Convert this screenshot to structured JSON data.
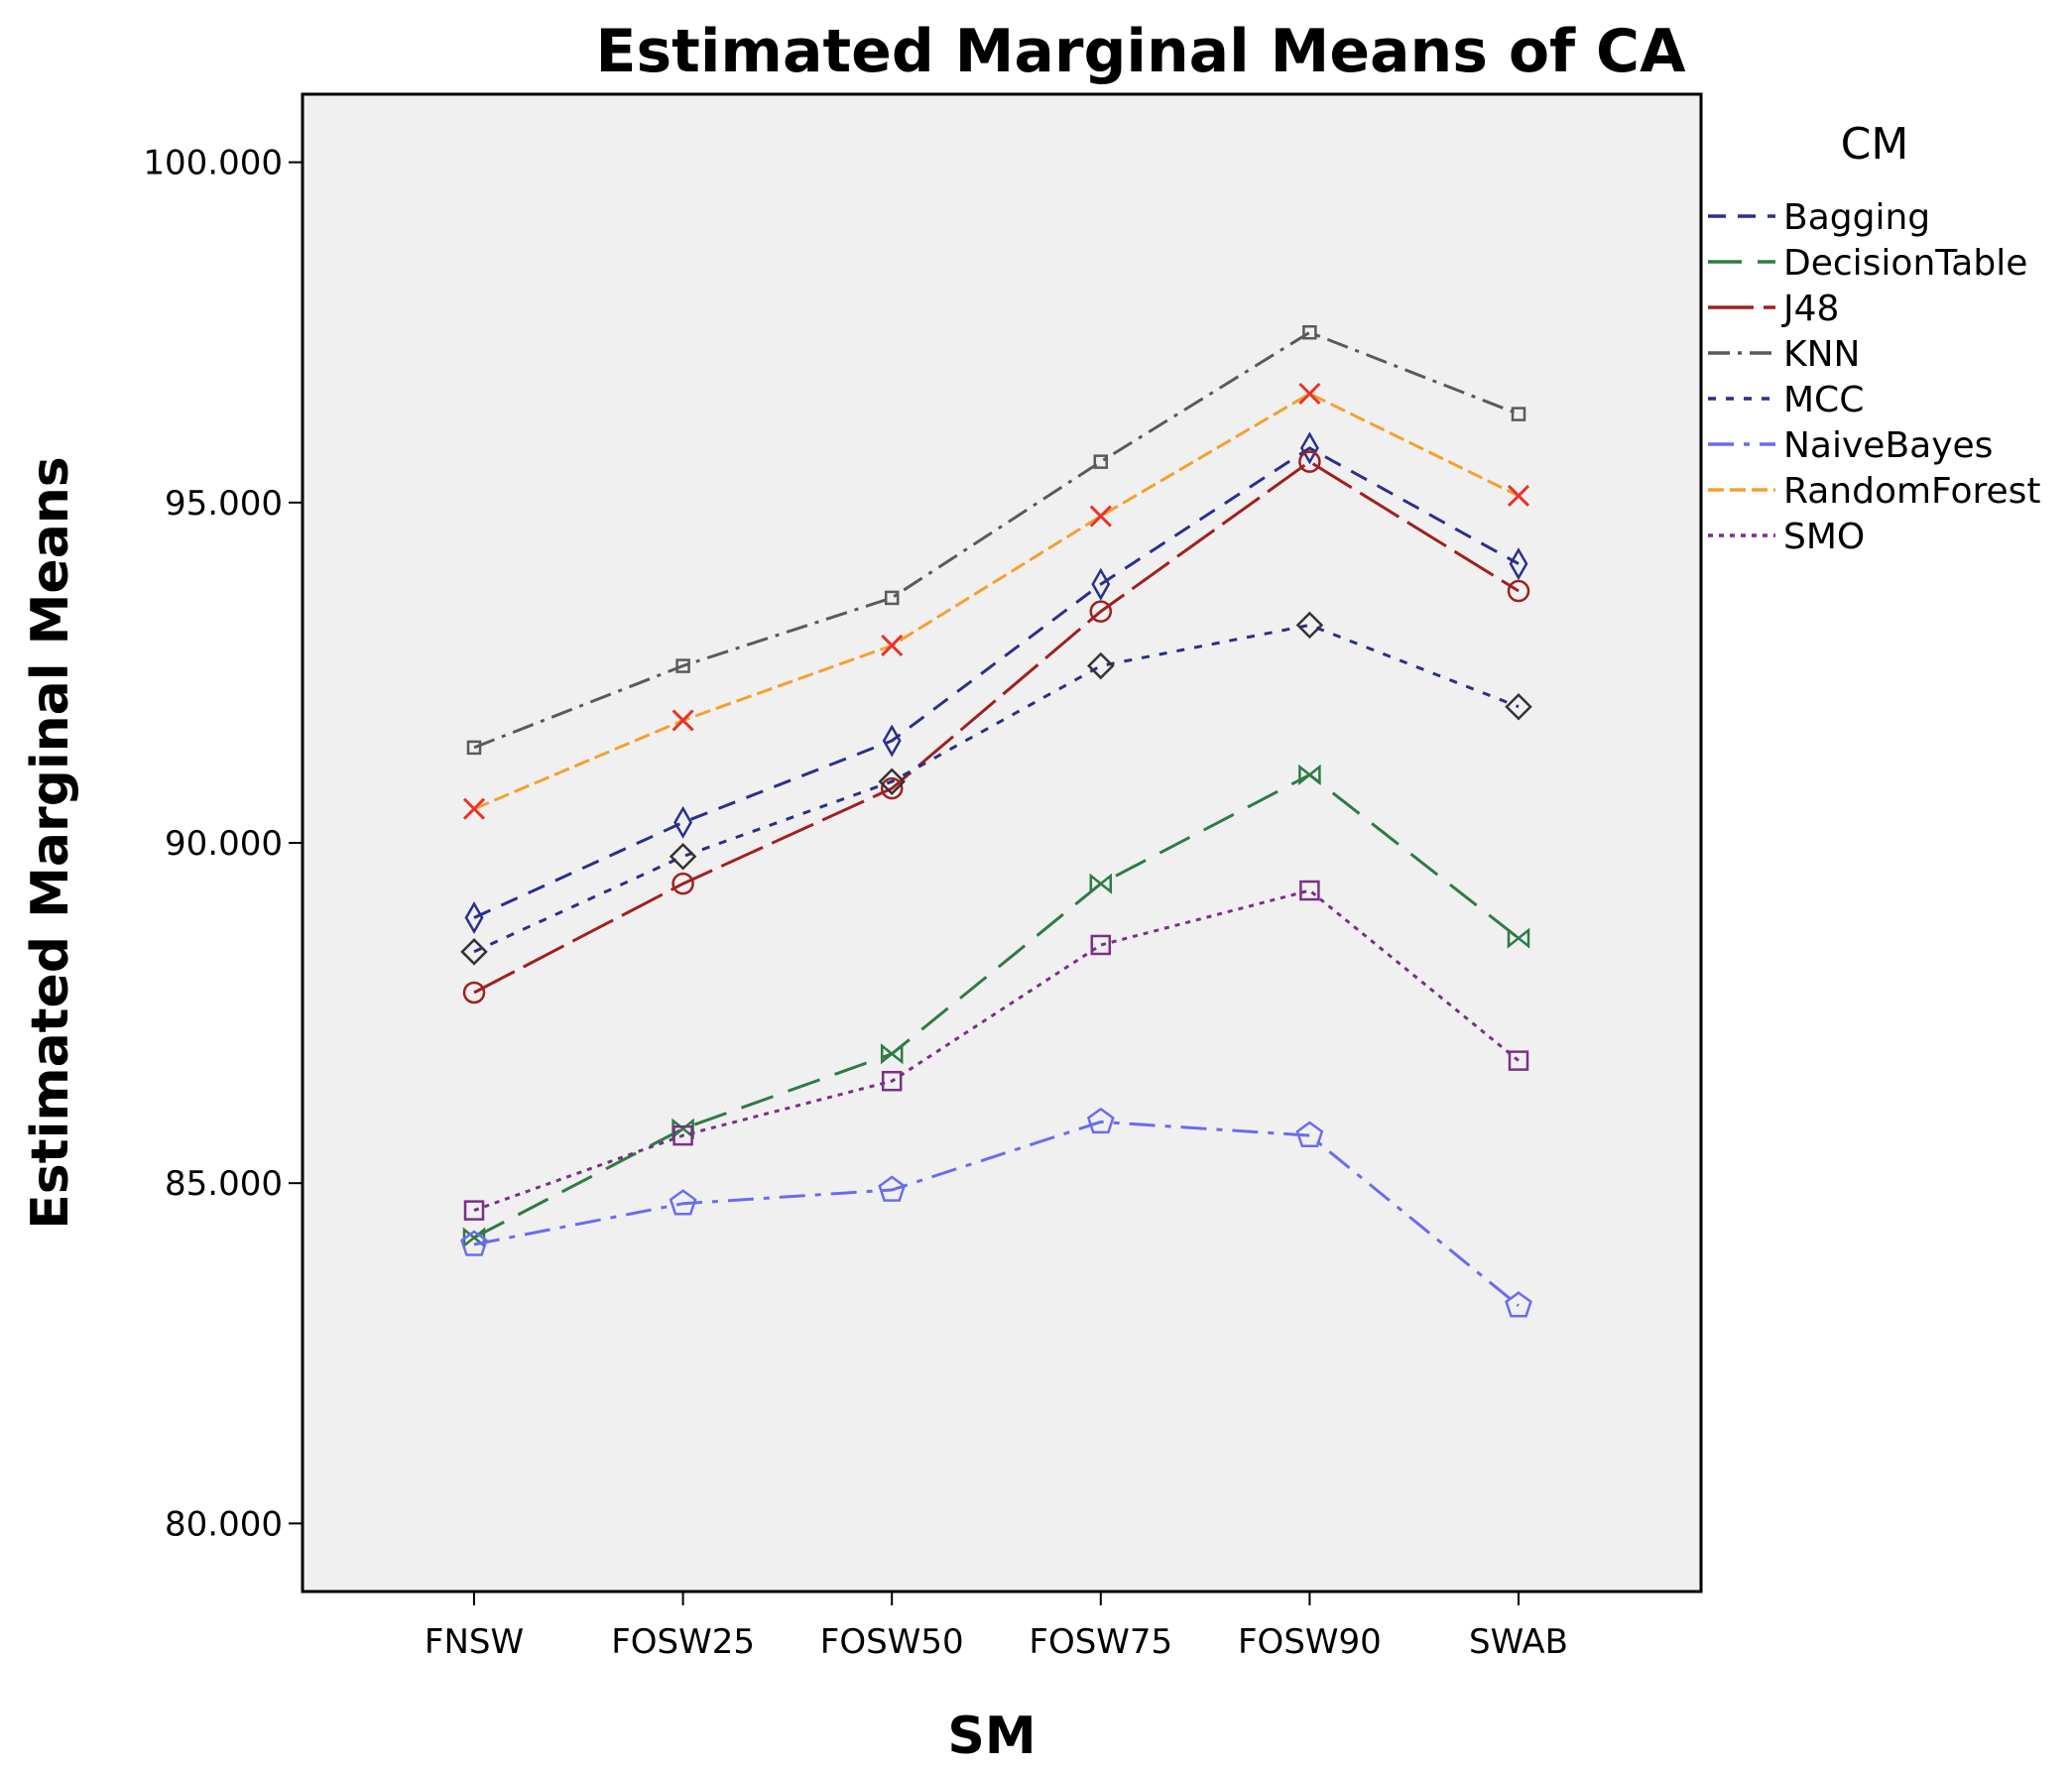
{
  "chart_data": {
    "type": "line",
    "title": "Estimated Marginal Means of CA",
    "xlabel": "SM",
    "ylabel": "Estimated Marginal Means",
    "ylim": [
      79,
      101
    ],
    "yticks": [
      80,
      85,
      90,
      95,
      100
    ],
    "ytick_labels": [
      "80.000",
      "85.000",
      "90.000",
      "95.000",
      "100.000"
    ],
    "categories": [
      "FNSW",
      "FOSW25",
      "FOSW50",
      "FOSW75",
      "FOSW90",
      "SWAB"
    ],
    "legend_title": "CM",
    "legend_position": "right",
    "grid": false,
    "series": [
      {
        "name": "Bagging",
        "color": "#2b2f8c",
        "marker": "diamond",
        "values": [
          88.9,
          90.3,
          91.5,
          93.8,
          95.8,
          94.1
        ]
      },
      {
        "name": "DecisionTable",
        "color": "#2e7b45",
        "marker": "bowtie",
        "values": [
          84.2,
          85.8,
          86.9,
          89.4,
          91.0,
          88.6
        ]
      },
      {
        "name": "J48",
        "color": "#a02020",
        "marker": "circle",
        "values": [
          87.8,
          89.4,
          90.8,
          93.4,
          95.6,
          93.7
        ]
      },
      {
        "name": "KNN",
        "color": "#5a5a5a",
        "marker": "square-small",
        "values": [
          91.4,
          92.6,
          93.6,
          95.6,
          97.5,
          96.3
        ]
      },
      {
        "name": "MCC",
        "color": "#2a2f88",
        "marker": "diamond-open",
        "values": [
          88.4,
          89.8,
          90.9,
          92.6,
          93.2,
          92.0
        ]
      },
      {
        "name": "NaiveBayes",
        "color": "#6a6cf0",
        "marker": "pentagon",
        "values": [
          84.1,
          84.7,
          84.9,
          85.9,
          85.7,
          83.2
        ]
      },
      {
        "name": "RandomForest",
        "color": "#f5a030",
        "marker": "x",
        "values": [
          90.5,
          91.8,
          92.9,
          94.8,
          96.6,
          95.1
        ]
      },
      {
        "name": "SMO",
        "color": "#7b2f88",
        "marker": "square",
        "values": [
          84.6,
          85.7,
          86.5,
          88.5,
          89.3,
          86.8
        ]
      }
    ]
  }
}
